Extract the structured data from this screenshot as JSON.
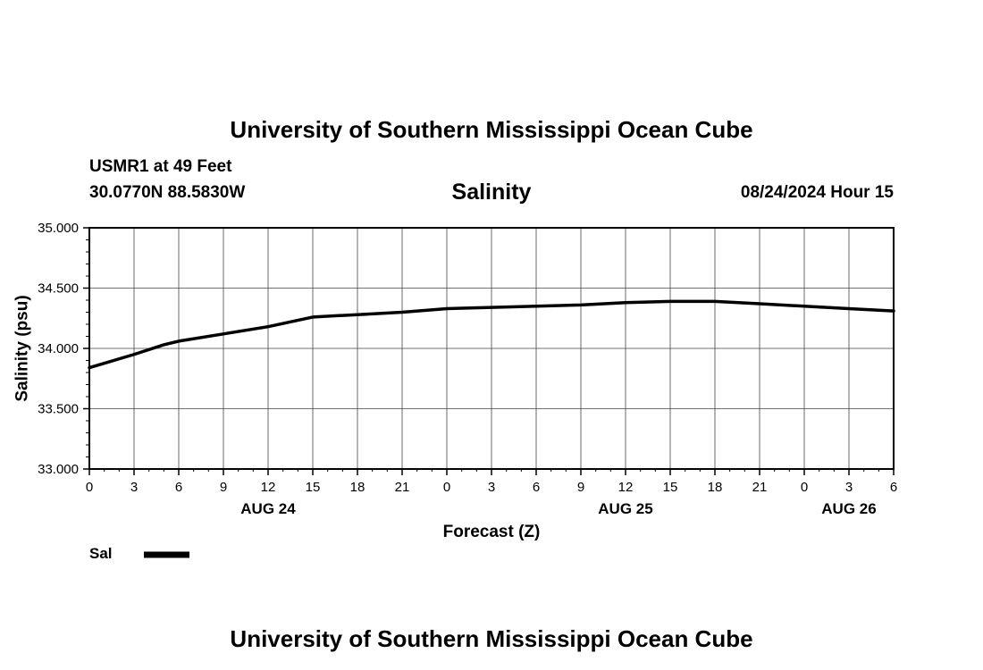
{
  "header": {
    "title": "University of Southern Mississippi Ocean Cube",
    "station": "USMR1 at 49 Feet",
    "coordinates": "30.0770N  88.5830W",
    "subtitle": "Salinity",
    "datetime": "08/24/2024 Hour 15"
  },
  "footer": {
    "title": "University of Southern Mississippi Ocean Cube"
  },
  "chart_data": {
    "type": "line",
    "title": "Salinity",
    "xlabel": "Forecast (Z)",
    "ylabel": "Salinity (psu)",
    "ylim": [
      33.0,
      35.0
    ],
    "xlim": [
      0,
      54
    ],
    "y_ticks": [
      "33.000",
      "33.500",
      "34.000",
      "34.500",
      "35.000"
    ],
    "y_tick_values": [
      33.0,
      33.5,
      34.0,
      34.5,
      35.0
    ],
    "x_ticks": [
      0,
      3,
      6,
      9,
      12,
      15,
      18,
      21,
      24,
      27,
      30,
      33,
      36,
      39,
      42,
      45,
      48,
      51,
      54
    ],
    "x_tick_labels": [
      "0",
      "3",
      "6",
      "9",
      "12",
      "15",
      "18",
      "21",
      "0",
      "3",
      "6",
      "9",
      "12",
      "15",
      "18",
      "21",
      "0",
      "3",
      "6"
    ],
    "date_labels": [
      {
        "label": "AUG 24",
        "hour": 12
      },
      {
        "label": "AUG 25",
        "hour": 36
      },
      {
        "label": "AUG 26",
        "hour": 51
      }
    ],
    "grid": true,
    "legend": [
      {
        "name": "Sal",
        "color": "#000000"
      }
    ],
    "series": [
      {
        "name": "Sal",
        "x": [
          0,
          3,
          5,
          6,
          9,
          12,
          15,
          18,
          21,
          24,
          27,
          30,
          33,
          36,
          39,
          42,
          45,
          48,
          51,
          54
        ],
        "values": [
          33.84,
          33.95,
          34.03,
          34.06,
          34.12,
          34.18,
          34.26,
          34.28,
          34.3,
          34.33,
          34.34,
          34.35,
          34.36,
          34.38,
          34.39,
          34.39,
          34.37,
          34.35,
          34.33,
          34.31
        ]
      }
    ]
  }
}
